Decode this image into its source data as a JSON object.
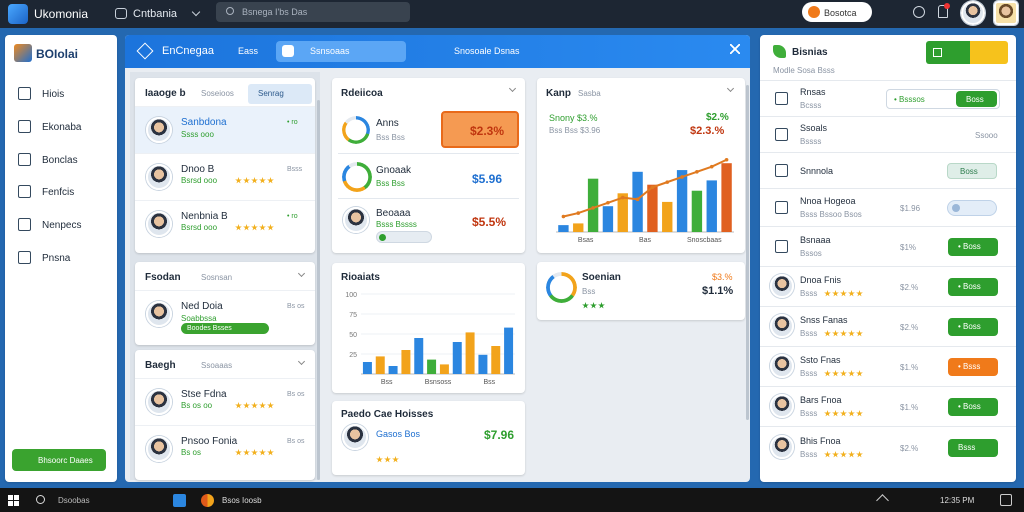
{
  "topbar": {
    "app": "Ukomonia",
    "workspace": "Cntbania",
    "search": "Bsnega I'bs Das",
    "action": "Bosotca"
  },
  "sidebar": {
    "brand": "BOIolai",
    "nav": [
      "Hiois",
      "Ekonaba",
      "Bonclas",
      "Fenfcis",
      "Nenpecs",
      "Pnsna"
    ],
    "button": "Bhsoorc Daaes"
  },
  "main": {
    "header": {
      "title": "EnCnegaa",
      "tab": "Eass",
      "pill": "Ssnsoaas",
      "menu": "Snosoale Dsnas"
    },
    "lists": [
      {
        "title": "Iaaoge b",
        "subtitle": "Soseioos",
        "tab": "Senrag",
        "items": [
          {
            "name": "Sanbdona",
            "sub": "Ssss ooo",
            "right": "• ro",
            "right_color": "#2e9e2e",
            "stars": false,
            "selected": true
          },
          {
            "name": "Dnoo B",
            "sub": "Bsrsd ooo",
            "right": "Bsss",
            "right_color": "#8a94a3",
            "stars": true,
            "selected": false
          },
          {
            "name": "Nenbnia B",
            "sub": "Bsrsd ooo",
            "right": "• ro",
            "right_color": "#2e9e2e",
            "stars": true,
            "selected": false
          }
        ]
      },
      {
        "title": "Fsodan",
        "subtitle": "Sosnsan",
        "items": [
          {
            "name": "Ned Doia",
            "sub": "Soabbssa",
            "bar": "Boodes Bsses",
            "right": "Bs os",
            "right_color": "#8a94a3",
            "stars": false,
            "selected": false
          }
        ]
      },
      {
        "title": "Baegh",
        "subtitle": "Ssoaaas",
        "items": [
          {
            "name": "Stse Fdna",
            "sub": "Bs os oo",
            "right": "Bs os",
            "right_color": "#8a94a3",
            "stars": true,
            "selected": false
          },
          {
            "name": "Pnsoo Fonia",
            "sub": "Bs os",
            "right": "Bs os",
            "right_color": "#8a94a3",
            "stars": true,
            "selected": false
          }
        ]
      }
    ],
    "stats": {
      "title": "Rdeiicoa",
      "rows": [
        {
          "label": "Anns",
          "sub": "Bss Bss",
          "value": "$2.3%"
        },
        {
          "label": "Gnoaak",
          "sub": "Bss Bss",
          "value": "$5.96"
        },
        {
          "label": "Beoaaa",
          "sub": "Bsss Bssss",
          "value": "$5.5%"
        }
      ]
    },
    "deal": {
      "title": "Paedo Cae Hoisses",
      "name": "Gasos Bos",
      "value": "$7.96"
    },
    "overview": {
      "title": "Kanp",
      "subtitle": "Sasba",
      "line1": "Snony $3.%",
      "line2": "Bss Bss $3.96",
      "value1": "$2.%",
      "value2": "$2.3.%"
    },
    "summary": {
      "title": "Soenian",
      "sub": "Bss",
      "value1": "$3.%",
      "value2": "$1.1%"
    }
  },
  "charts": [
    {
      "type": "bar",
      "title": "Rioaiats",
      "ylim": [
        0,
        100
      ],
      "yticks": [
        25,
        50,
        75,
        100
      ],
      "x_labels": [
        "Bss",
        "Bsnsoss",
        "Bss"
      ],
      "values": [
        15,
        22,
        10,
        30,
        45,
        18,
        12,
        40,
        52,
        24,
        35,
        58
      ],
      "colors": [
        "#2b86e0",
        "#f2a31b",
        "#2b86e0",
        "#f2a31b",
        "#2b86e0",
        "#3fae3a",
        "#f2a31b",
        "#2b86e0",
        "#f2a31b",
        "#2b86e0",
        "#f2a31b",
        "#2b86e0"
      ]
    },
    {
      "type": "bar",
      "ylim": [
        0,
        100
      ],
      "x_labels": [
        "Bsas",
        "Bas",
        "Snoscbaas"
      ],
      "values": [
        8,
        10,
        62,
        30,
        45,
        70,
        55,
        35,
        72,
        48,
        60,
        80
      ],
      "colors": [
        "#2b86e0",
        "#f2a31b",
        "#3fae3a",
        "#2b86e0",
        "#f2a31b",
        "#2b86e0",
        "#e06020",
        "#f2a31b",
        "#2b86e0",
        "#3fae3a",
        "#2b86e0",
        "#e06020"
      ],
      "line": [
        18,
        22,
        28,
        34,
        40,
        38,
        52,
        58,
        64,
        70,
        76,
        84
      ],
      "line_color": "#e07a20"
    }
  ],
  "right": {
    "title": "Bisnias",
    "subtitle": "Modle Sosa Bsss",
    "rows": [
      {
        "name": "Rnsas",
        "sub": "Bcsss",
        "control": "input",
        "field": "• Bsssos",
        "button": "Boss",
        "color": "#2e9e2e",
        "avatar": false
      },
      {
        "name": "Ssoals",
        "sub": "Bssss",
        "percent": "Ssooo",
        "control": "none",
        "avatar": false
      },
      {
        "name": "Snnnola",
        "control": "pill",
        "button": "Boss",
        "color": "#dfeee8",
        "avatar": false
      },
      {
        "name": "Nnoa Hogeoa",
        "sub": "Bsss Bssoo Bsos",
        "percent": "$1.96",
        "control": "toggle",
        "avatar": false
      },
      {
        "name": "Bsnaaa",
        "sub": "Bssos",
        "percent": "$1%",
        "control": "button",
        "button": "• Boss",
        "color": "#2e9e2e",
        "avatar": false
      },
      {
        "name": "Dnoa Fnis",
        "sub": "Bsss",
        "percent": "$2.%",
        "control": "button",
        "button": "• Boss",
        "color": "#2e9e2e",
        "avatar": true
      },
      {
        "name": "Snss Fanas",
        "sub": "Bsss",
        "percent": "$2.%",
        "control": "button",
        "button": "• Boss",
        "color": "#2e9e2e",
        "avatar": true
      },
      {
        "name": "Ssto Fnas",
        "sub": "Bsss",
        "percent": "$1.%",
        "control": "button",
        "button": "• Bsss",
        "color": "#f07a1a",
        "avatar": true
      },
      {
        "name": "Bars Fnoa",
        "sub": "Bsss",
        "percent": "$1.%",
        "control": "button",
        "button": "• Boss",
        "color": "#2e9e2e",
        "avatar": true
      },
      {
        "name": "Bhis Fnoa",
        "sub": "Bsss",
        "percent": "$2.%",
        "control": "button",
        "button": "Bsss",
        "color": "#2e9e2e",
        "avatar": true
      }
    ]
  },
  "taskbar": {
    "search": "Dsoobas",
    "app": "Bsos Ioosb",
    "time": "12:35 PM"
  }
}
